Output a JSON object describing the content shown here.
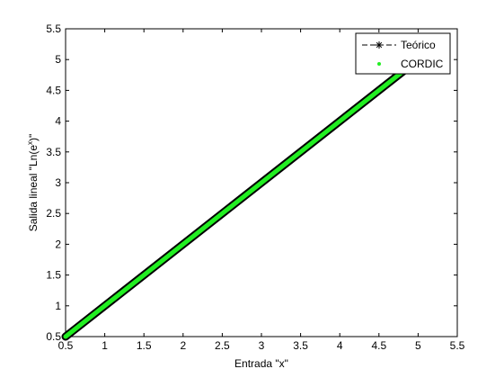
{
  "chart_data": {
    "type": "line",
    "title": "",
    "xlabel": "Entrada \"x\"",
    "ylabel_prefix": "Salida lineal \"Ln(e",
    "ylabel_sup": "x",
    "ylabel_suffix": ")\"",
    "xlim": [
      0.5,
      5.5
    ],
    "ylim": [
      0.5,
      5.5
    ],
    "xticks": [
      "0.5",
      "1",
      "1.5",
      "2",
      "2.5",
      "3",
      "3.5",
      "4",
      "4.5",
      "5",
      "5.5"
    ],
    "yticks": [
      "0.5",
      "1",
      "1.5",
      "2",
      "2.5",
      "3",
      "3.5",
      "4",
      "4.5",
      "5",
      "5.5"
    ],
    "grid": false,
    "legend_position": "top-right",
    "series": [
      {
        "name": "Teórico",
        "color": "#000000",
        "marker": "asterisk",
        "line": "solid",
        "x": [
          0.5,
          5.0
        ],
        "y": [
          0.5,
          5.0
        ]
      },
      {
        "name": "CORDIC",
        "color": "#22ee22",
        "marker": "dot",
        "line": "none",
        "x": [
          0.5,
          5.0
        ],
        "y": [
          0.5,
          5.0
        ]
      }
    ]
  },
  "colors": {
    "axes": "#000000",
    "background": "#ffffff"
  }
}
